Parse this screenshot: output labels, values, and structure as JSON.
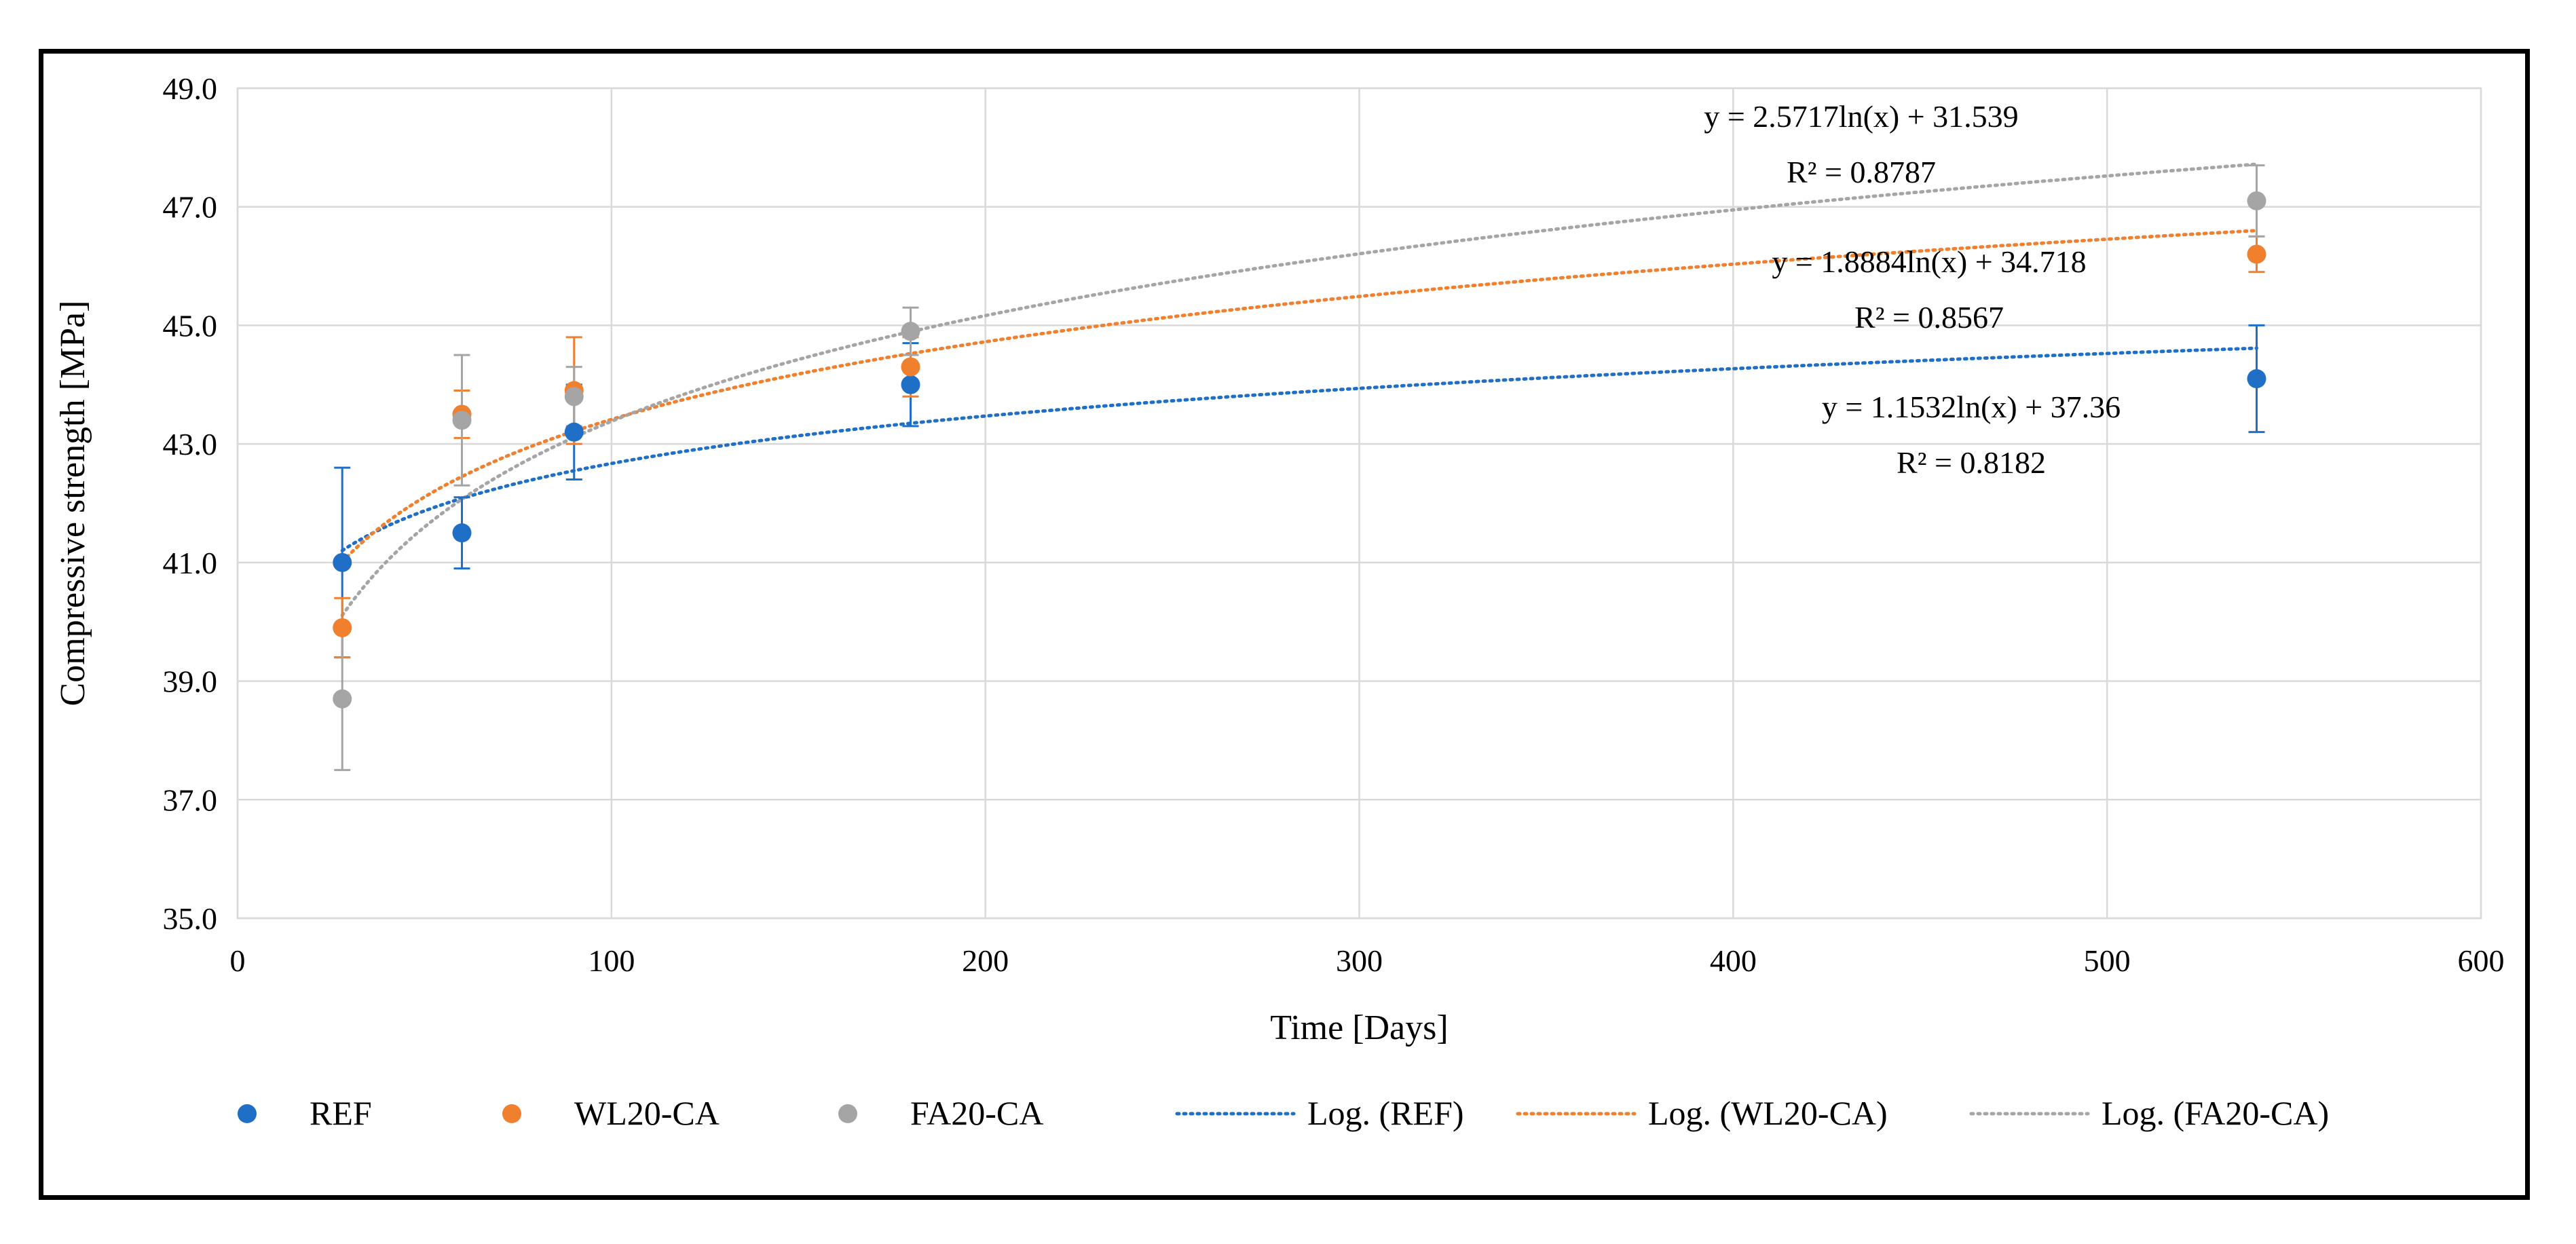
{
  "chart_data": {
    "type": "scatter",
    "title": "",
    "xlabel": "Time [Days]",
    "ylabel": "Compressive strength [MPa]",
    "xlim": [
      0,
      600
    ],
    "ylim": [
      35.0,
      49.0
    ],
    "xticks": [
      "0",
      "100",
      "200",
      "300",
      "400",
      "500",
      "600"
    ],
    "yticks": [
      "35.0",
      "37.0",
      "39.0",
      "41.0",
      "43.0",
      "45.0",
      "47.0",
      "49.0"
    ],
    "grid": true,
    "legend_position": "bottom",
    "series": [
      {
        "name": "REF",
        "color": "#1f6fc6",
        "x": [
          28,
          60,
          90,
          180,
          540
        ],
        "y": [
          41.0,
          41.5,
          43.2,
          44.0,
          44.1
        ],
        "error": [
          1.6,
          0.6,
          0.8,
          0.7,
          0.9
        ],
        "trendline": {
          "name": "Log. (REF)",
          "a": 1.1532,
          "b": 37.36,
          "equation": "y = 1.1532ln(x) + 37.36",
          "r2": "R² = 0.8182"
        }
      },
      {
        "name": "WL20-CA",
        "color": "#f07f2e",
        "x": [
          28,
          60,
          90,
          180,
          540
        ],
        "y": [
          39.9,
          43.5,
          43.9,
          44.3,
          46.2
        ],
        "error": [
          0.5,
          0.4,
          0.9,
          0.5,
          0.3
        ],
        "trendline": {
          "name": "Log. (WL20-CA)",
          "a": 1.8884,
          "b": 34.718,
          "equation": "y = 1.8884ln(x) + 34.718",
          "r2": "R² = 0.8567"
        }
      },
      {
        "name": "FA20-CA",
        "color": "#a5a5a5",
        "x": [
          28,
          60,
          90,
          180,
          540
        ],
        "y": [
          38.7,
          43.4,
          43.8,
          44.9,
          47.1
        ],
        "error": [
          1.2,
          1.1,
          0.5,
          0.4,
          0.6
        ],
        "trendline": {
          "name": "Log. (FA20-CA)",
          "a": 2.5717,
          "b": 31.539,
          "equation": "y = 2.5717ln(x) + 31.539",
          "r2": "R² = 0.8787"
        }
      }
    ]
  }
}
